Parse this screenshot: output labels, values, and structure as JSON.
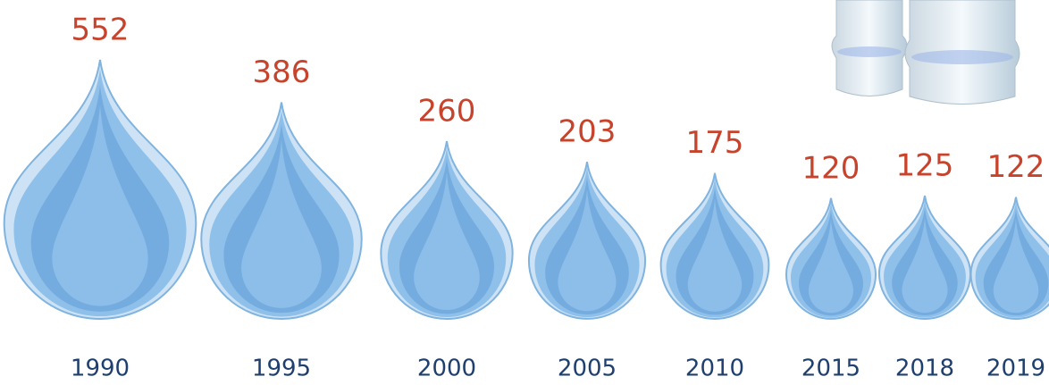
{
  "chart_data": {
    "type": "pictograph",
    "categories": [
      "1990",
      "1995",
      "2000",
      "2005",
      "2010",
      "2015",
      "2018",
      "2019"
    ],
    "values": [
      552,
      386,
      260,
      203,
      175,
      120,
      125,
      122
    ],
    "color": "#8fc0ea",
    "label_color": "#c8432b",
    "category_color": "#1f3f6e"
  }
}
